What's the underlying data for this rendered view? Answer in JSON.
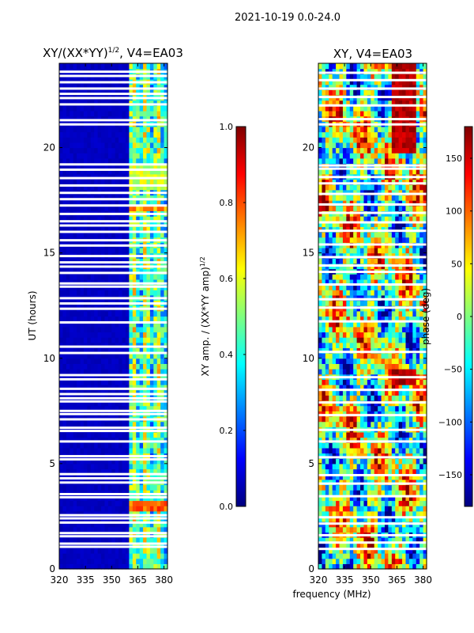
{
  "figure": {
    "suptitle": "2021-10-19 0.0-24.0",
    "xlabel": "frequency (MHz)"
  },
  "colors": {
    "cmap": [
      "#00007f",
      "#0000ff",
      "#007fff",
      "#00ffff",
      "#7fff7f",
      "#ffff00",
      "#ff7f00",
      "#ff0000",
      "#7f0000"
    ]
  },
  "chart_data": [
    {
      "type": "heatmap",
      "title_main": "XY/(XX*YY)",
      "title_sup": "1/2",
      "title_rest": ", V4=EA03",
      "xlabel": "",
      "ylabel": "UT (hours)",
      "xlim": [
        320,
        382
      ],
      "ylim": [
        0,
        24
      ],
      "xticks": [
        320,
        335,
        350,
        365,
        380
      ],
      "yticks": [
        0,
        5,
        10,
        15,
        20
      ],
      "colorbar": {
        "label_main": "XY amp. / (XX*YY amp)",
        "label_sup": "1/2",
        "range": [
          0.0,
          1.0
        ],
        "ticks": [
          "0.0",
          "0.2",
          "0.4",
          "0.6",
          "0.8",
          "1.0"
        ],
        "tick_values": [
          0.0,
          0.2,
          0.4,
          0.6,
          0.8,
          1.0
        ]
      },
      "low_band_value": 0.05,
      "high_band_range": [
        360,
        382
      ],
      "gap_hours": [
        1.05,
        1.2,
        1.55,
        1.7,
        2.2,
        2.4,
        2.55,
        3.4,
        3.55,
        4.1,
        4.3,
        4.5,
        5.2,
        5.35,
        6.05,
        6.55,
        6.7,
        7.1,
        7.35,
        7.5,
        7.95,
        8.1,
        8.3,
        8.55,
        9.0,
        9.2,
        10.25,
        10.55,
        11.7,
        12.35,
        12.6,
        12.85,
        13.4,
        13.55,
        14.05,
        14.35,
        14.55,
        14.85,
        15.35,
        15.6,
        16.0,
        16.3,
        16.5,
        16.85,
        17.25,
        17.55,
        17.85,
        18.2,
        18.55,
        18.95,
        19.2,
        21.1,
        21.3,
        22.05,
        22.35,
        22.55,
        22.8,
        23.1,
        23.4,
        23.6
      ],
      "hot_spots": [
        {
          "t0": 2.65,
          "t1": 3.2,
          "value": 0.85
        },
        {
          "t0": 16.95,
          "t1": 17.2,
          "value": 0.8
        },
        {
          "t0": 17.8,
          "t1": 19.1,
          "value": 0.65
        }
      ]
    },
    {
      "type": "heatmap",
      "title": "XY, V4=EA03",
      "xlabel": "",
      "ylabel": "",
      "xlim": [
        320,
        382
      ],
      "ylim": [
        0,
        24
      ],
      "xticks": [
        320,
        335,
        350,
        365,
        380
      ],
      "yticks": [
        0,
        5,
        10,
        15,
        20
      ],
      "colorbar": {
        "label": "phase (deg)",
        "range": [
          -180,
          180
        ],
        "ticks": [
          "−150",
          "−100",
          "−50",
          "0",
          "50",
          "100",
          "150"
        ],
        "tick_values": [
          -150,
          -100,
          -50,
          0,
          50,
          100,
          150
        ]
      },
      "gap_hours": [
        0.95,
        1.25,
        1.6,
        2.15,
        2.45,
        3.45,
        4.05,
        4.45,
        5.3,
        6.05,
        6.6,
        7.3,
        7.9,
        8.5,
        9.1,
        10.3,
        11.75,
        12.4,
        12.8,
        13.5,
        14.1,
        14.4,
        14.8,
        15.4,
        16.05,
        16.45,
        16.9,
        17.3,
        17.8,
        18.3,
        18.6,
        19.0,
        19.15,
        21.1,
        21.35,
        22.0,
        22.4,
        22.8,
        23.2,
        23.55
      ]
    }
  ]
}
